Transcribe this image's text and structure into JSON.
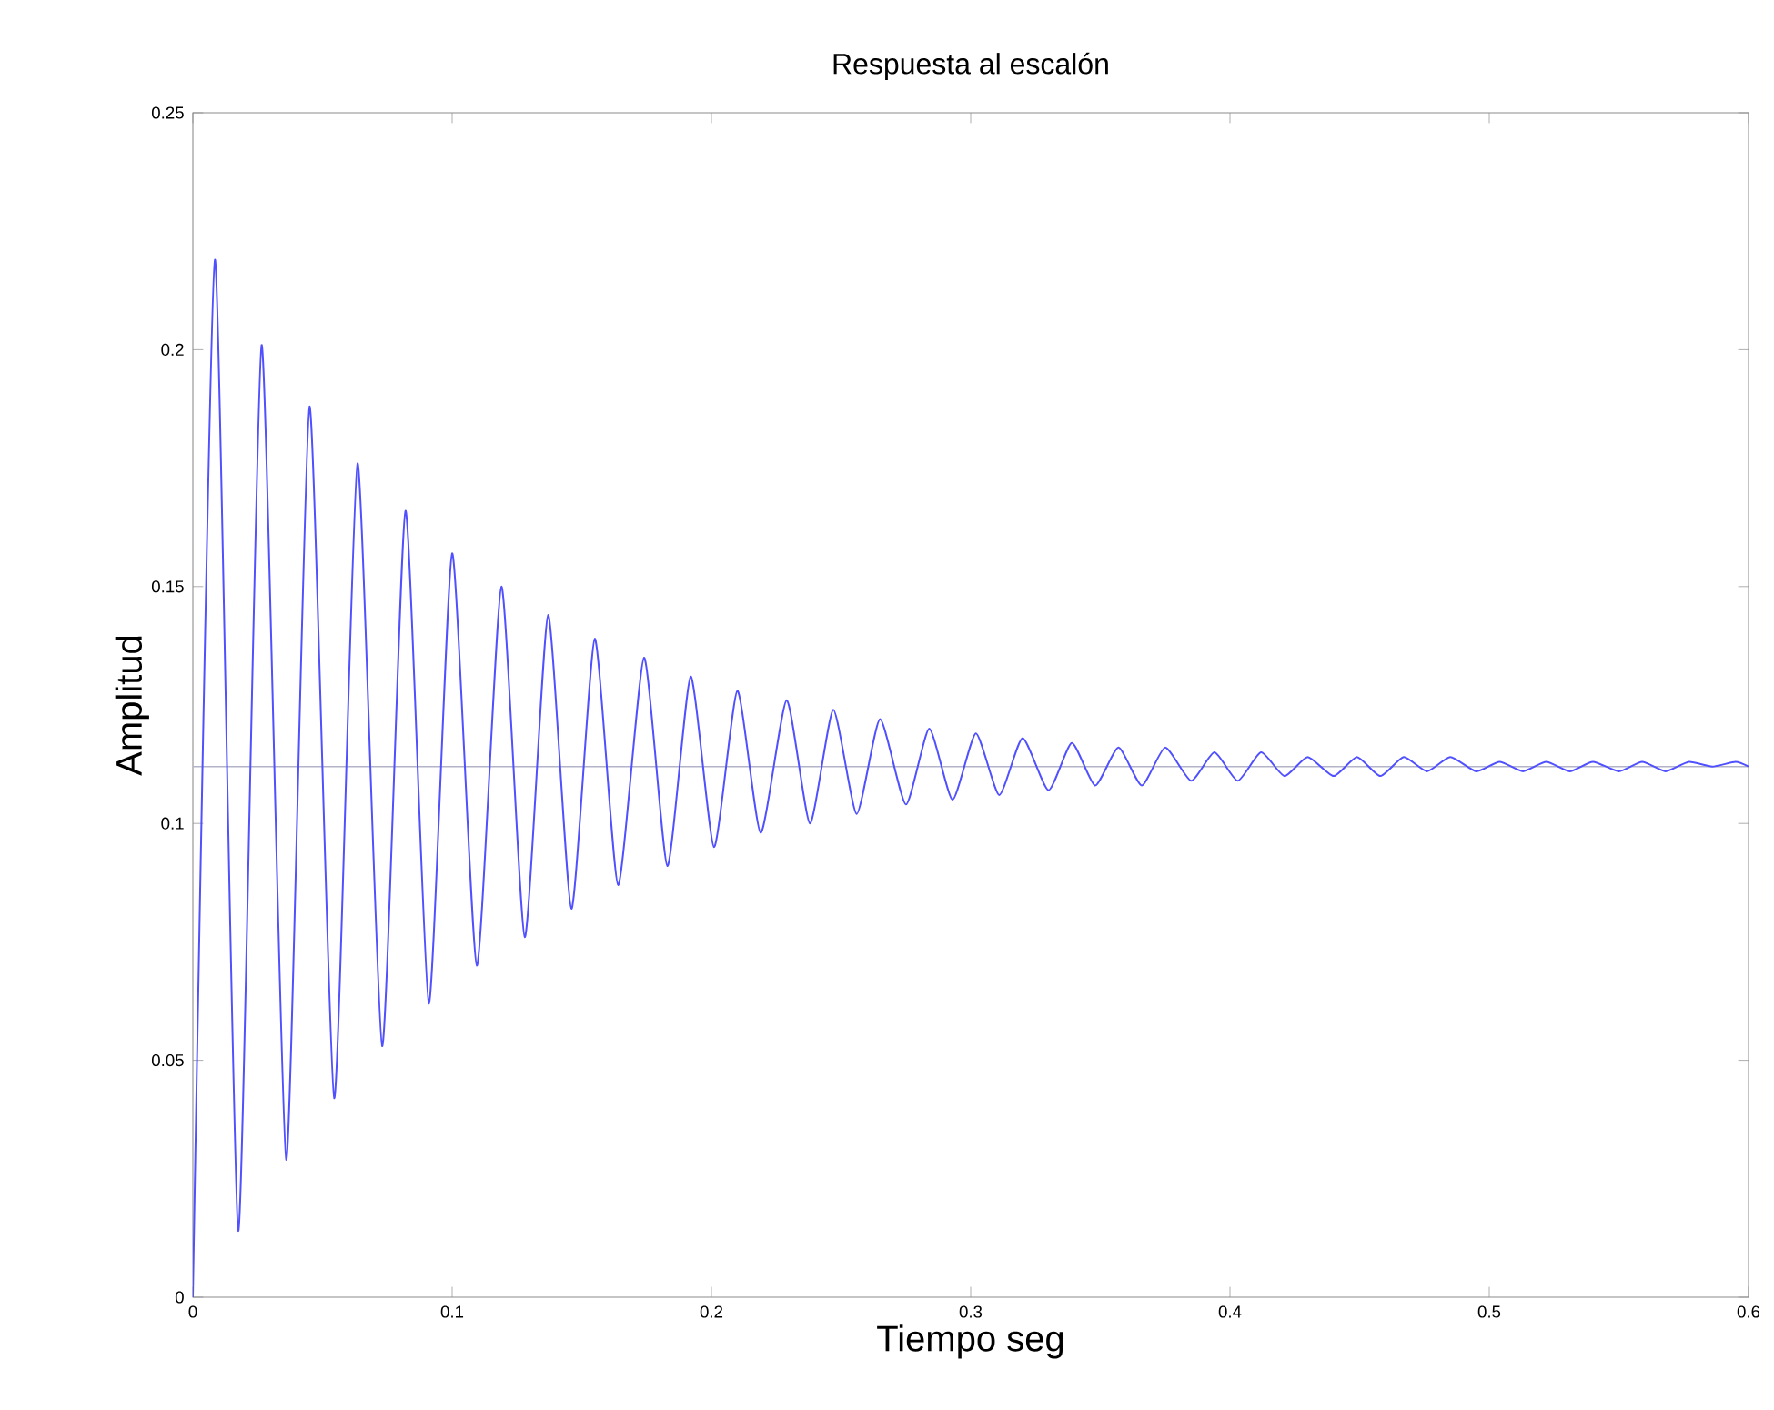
{
  "chart_data": {
    "type": "line",
    "title": "Respuesta al escalón",
    "xlabel": "Tiempo  seg",
    "ylabel": "Amplitud",
    "xlim": [
      0,
      0.6
    ],
    "ylim": [
      0,
      0.25
    ],
    "xticks": [
      0,
      0.1,
      0.2,
      0.3,
      0.4,
      0.5,
      0.6
    ],
    "yticks": [
      0,
      0.05,
      0.1,
      0.15,
      0.2,
      0.25
    ],
    "grid": false,
    "ref_lines": [
      {
        "axis": "y",
        "value": 0.112,
        "color": "#b4b4c8"
      }
    ],
    "series": [
      {
        "color": "#5050ff",
        "x": [
          0,
          0.0085,
          0.0175,
          0.0265,
          0.036,
          0.045,
          0.0545,
          0.0635,
          0.073,
          0.082,
          0.091,
          0.1,
          0.1095,
          0.119,
          0.128,
          0.137,
          0.146,
          0.155,
          0.164,
          0.174,
          0.183,
          0.192,
          0.201,
          0.21,
          0.219,
          0.229,
          0.238,
          0.247,
          0.256,
          0.265,
          0.275,
          0.284,
          0.293,
          0.302,
          0.311,
          0.32,
          0.33,
          0.339,
          0.348,
          0.357,
          0.366,
          0.375,
          0.385,
          0.394,
          0.403,
          0.412,
          0.421,
          0.43,
          0.44,
          0.449,
          0.458,
          0.467,
          0.476,
          0.485,
          0.495,
          0.504,
          0.513,
          0.522,
          0.531,
          0.54,
          0.55,
          0.559,
          0.568,
          0.577,
          0.586,
          0.595,
          0.6
        ],
        "values": [
          0,
          0.219,
          0.014,
          0.201,
          0.029,
          0.188,
          0.042,
          0.176,
          0.053,
          0.166,
          0.062,
          0.157,
          0.07,
          0.15,
          0.076,
          0.144,
          0.082,
          0.139,
          0.087,
          0.135,
          0.091,
          0.131,
          0.095,
          0.128,
          0.098,
          0.126,
          0.1,
          0.124,
          0.102,
          0.122,
          0.104,
          0.12,
          0.105,
          0.119,
          0.106,
          0.118,
          0.107,
          0.117,
          0.108,
          0.116,
          0.108,
          0.116,
          0.109,
          0.115,
          0.109,
          0.115,
          0.11,
          0.114,
          0.11,
          0.114,
          0.11,
          0.114,
          0.111,
          0.114,
          0.111,
          0.113,
          0.111,
          0.113,
          0.111,
          0.113,
          0.111,
          0.113,
          0.111,
          0.113,
          0.112,
          0.113,
          0.112
        ]
      }
    ]
  }
}
